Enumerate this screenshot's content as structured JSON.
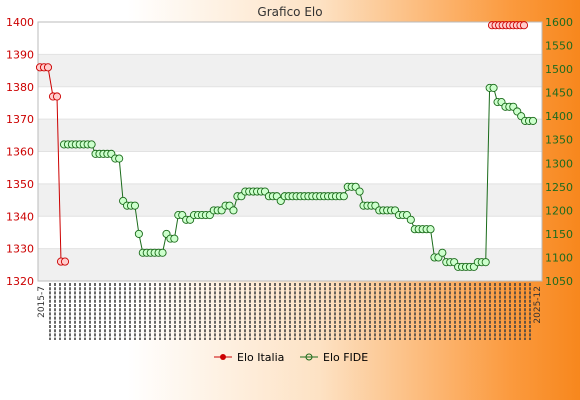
{
  "colors": {
    "italia": "#cc0000",
    "fide": "#1a6b1a",
    "fide_fill": "#ccffcc",
    "italia_fill": "#ffcccc",
    "band_light": "#f0f0f0",
    "band_white": "#ffffff"
  },
  "chart_data": {
    "type": "line",
    "title": "Grafico Elo",
    "legend_position": "bottom",
    "grid": true,
    "x_tick_format": "yyyy-m-d (rotated, overlapping)",
    "left_axis": {
      "ylim": [
        1320,
        1400
      ],
      "ticks": [
        "1320",
        "1330",
        "1340",
        "1350",
        "1360",
        "1370",
        "1380",
        "1390",
        "1400"
      ]
    },
    "right_axis": {
      "ylim": [
        1050,
        1600
      ],
      "ticks": [
        "1050",
        "1100",
        "1150",
        "1200",
        "1250",
        "1300",
        "1350",
        "1400",
        "1450",
        "1500",
        "1550",
        "1600"
      ]
    },
    "x_first_label": "2015-7",
    "x_last_label": "2025-12",
    "series": [
      {
        "name": "Elo Italia",
        "axis": "left",
        "values": [
          1386,
          1386,
          1386,
          1377,
          1377,
          1326,
          1326
        ]
      },
      {
        "name": "Elo FIDE",
        "axis": "right",
        "values": [
          1340,
          1340,
          1340,
          1340,
          1340,
          1340,
          1340,
          1340,
          1320,
          1320,
          1320,
          1320,
          1320,
          1310,
          1310,
          1220,
          1210,
          1210,
          1210,
          1150,
          1110,
          1110,
          1110,
          1110,
          1110,
          1110,
          1150,
          1140,
          1140,
          1190,
          1190,
          1180,
          1180,
          1190,
          1190,
          1190,
          1190,
          1190,
          1200,
          1200,
          1200,
          1210,
          1210,
          1200,
          1230,
          1230,
          1240,
          1240,
          1240,
          1240,
          1240,
          1240,
          1230,
          1230,
          1230,
          1220,
          1230,
          1230,
          1230,
          1230,
          1230,
          1230,
          1230,
          1230,
          1230,
          1230,
          1230,
          1230,
          1230,
          1230,
          1230,
          1230,
          1250,
          1250,
          1250,
          1240,
          1210,
          1210,
          1210,
          1210,
          1200,
          1200,
          1200,
          1200,
          1200,
          1190,
          1190,
          1190,
          1180,
          1160,
          1160,
          1160,
          1160,
          1160,
          1100,
          1100,
          1110,
          1090,
          1090,
          1090,
          1080,
          1080,
          1080,
          1080,
          1080,
          1090,
          1090,
          1090,
          1460,
          1460,
          1430,
          1430,
          1420,
          1420,
          1420,
          1410,
          1400,
          1390,
          1390,
          1390
        ]
      }
    ],
    "italia_late": {
      "value": 1399,
      "count": 10
    }
  },
  "legend": {
    "italia": "Elo Italia",
    "fide": "Elo FIDE"
  }
}
